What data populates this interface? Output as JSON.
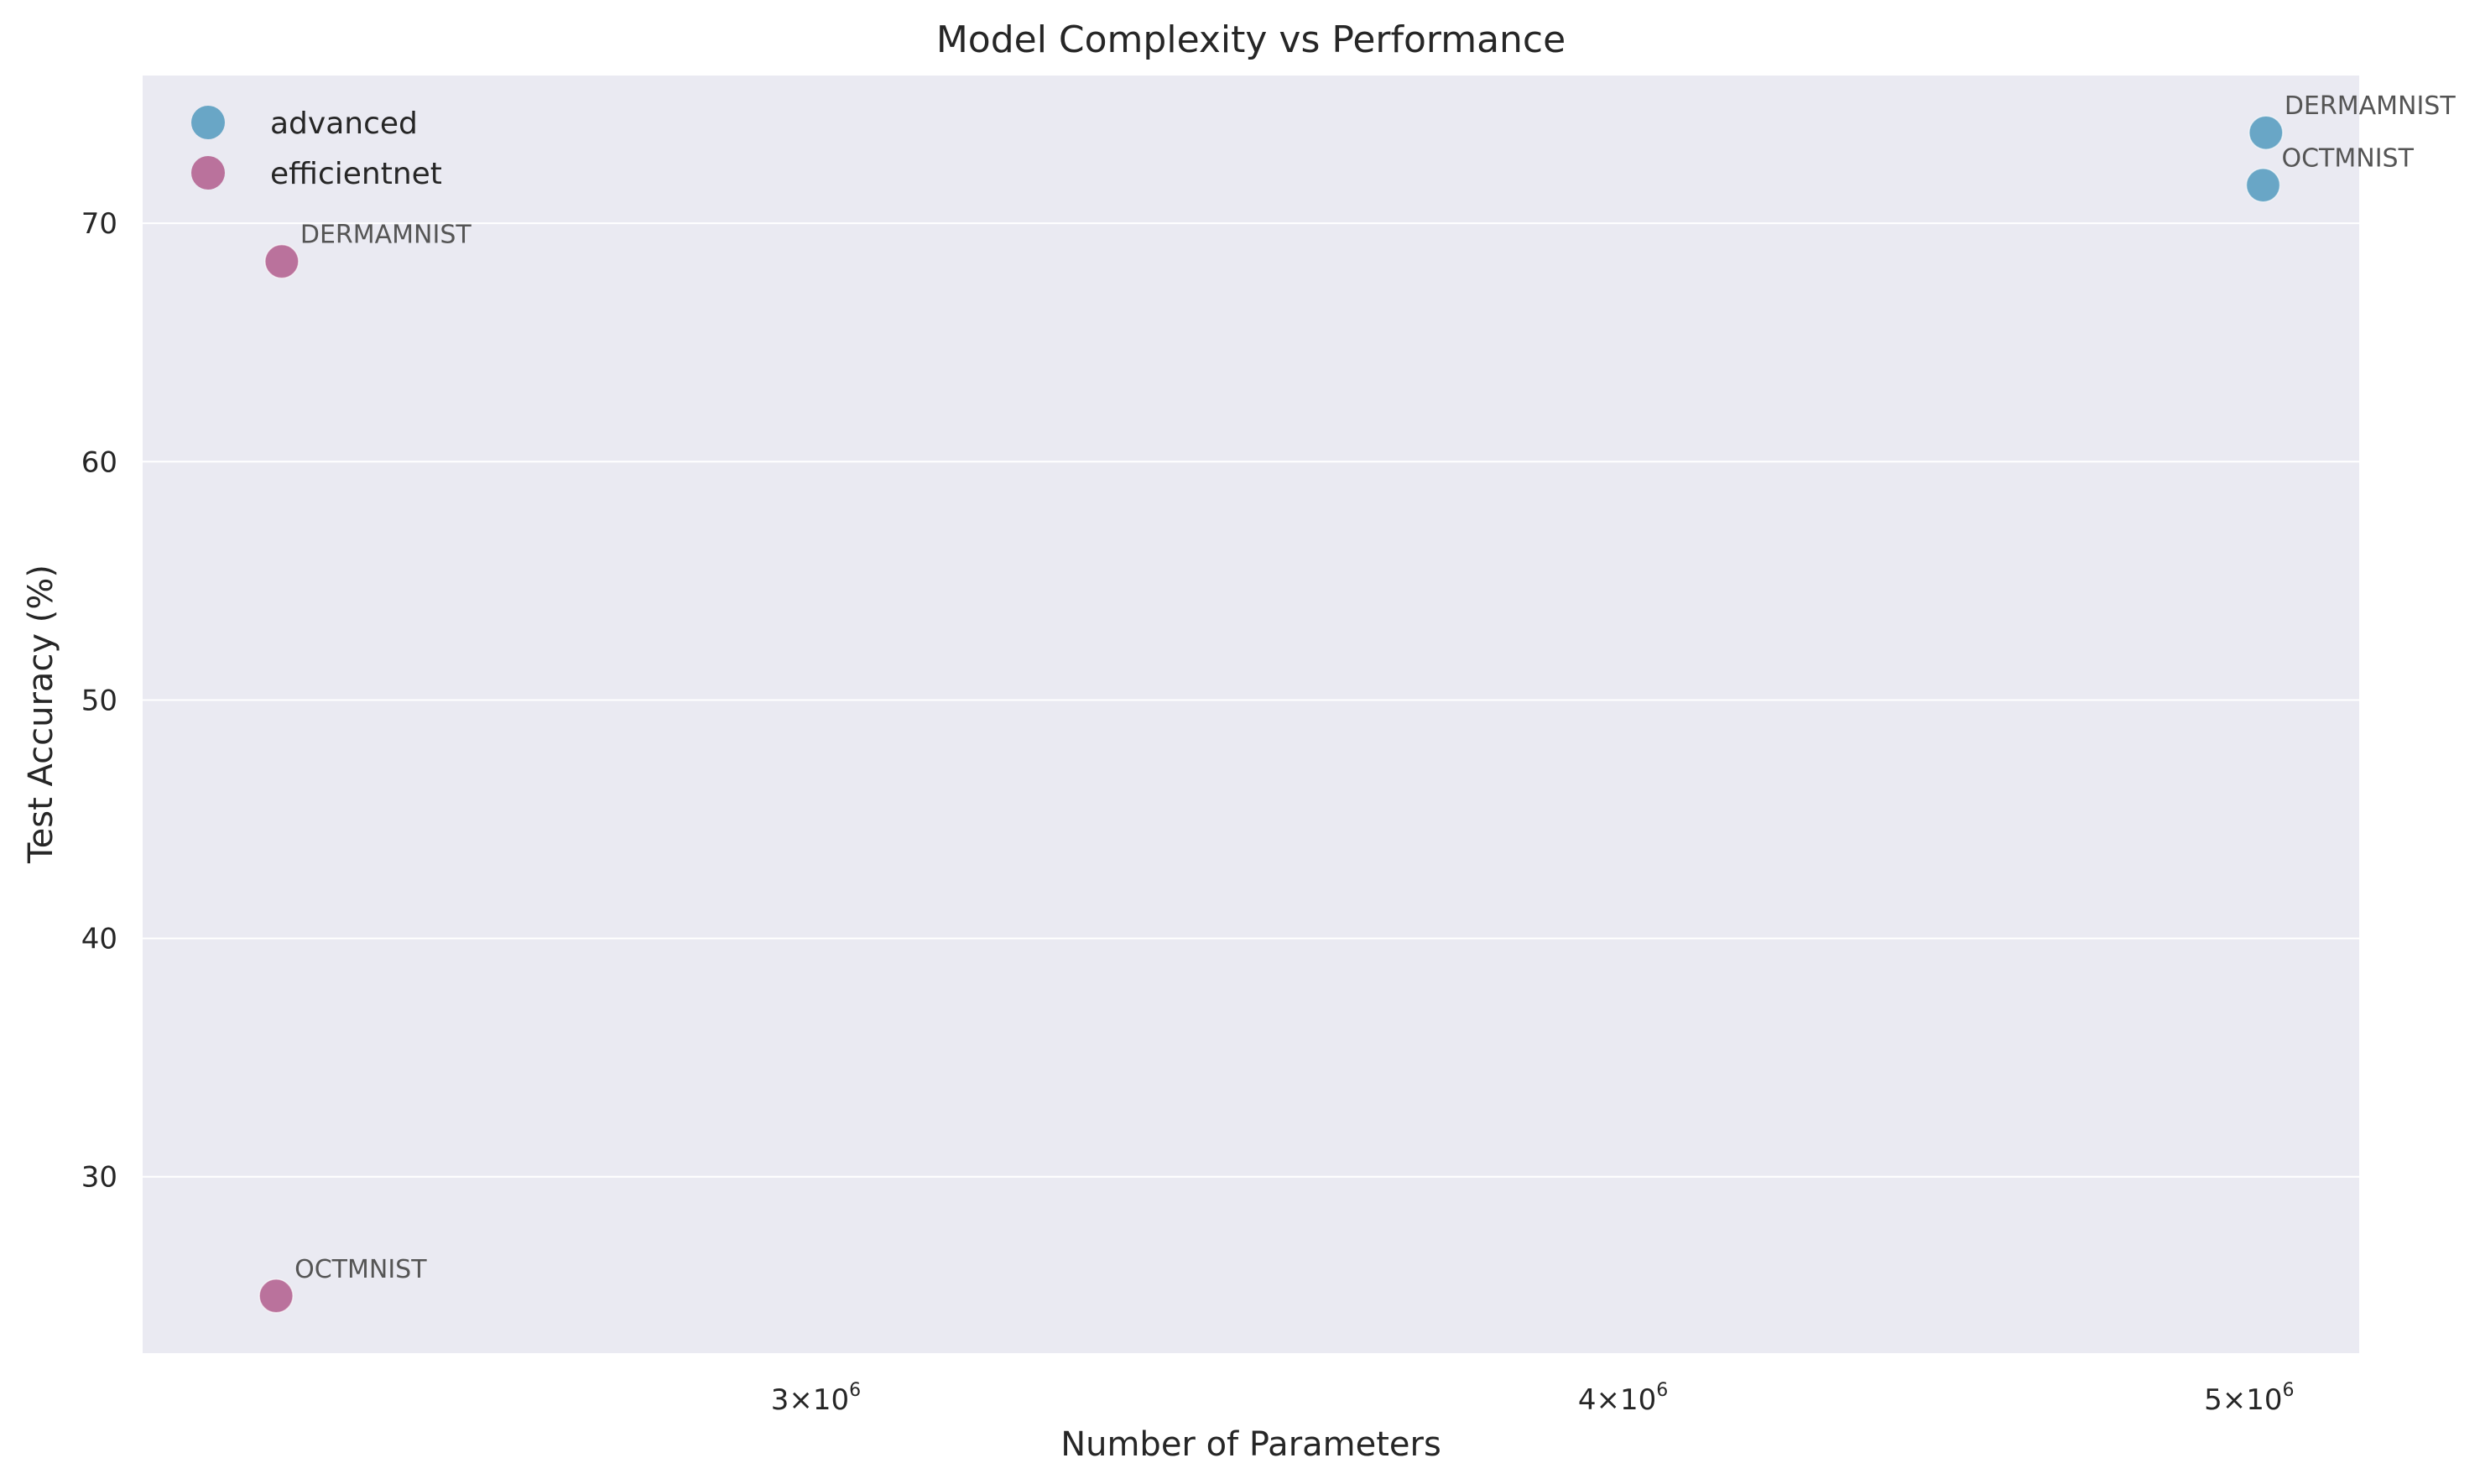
{
  "chart_data": {
    "type": "scatter",
    "title": "Model Complexity vs Performance",
    "xlabel": "Number of Parameters",
    "ylabel": "Test Accuracy (%)",
    "x_scale": "log",
    "xlim": [
      2360000,
      5200000
    ],
    "ylim": [
      22.6,
      76.2
    ],
    "x_ticks": [
      {
        "value": 3000000,
        "base": "3×10",
        "exp": "6"
      },
      {
        "value": 4000000,
        "base": "4×10",
        "exp": "6"
      },
      {
        "value": 5000000,
        "base": "5×10",
        "exp": "6"
      }
    ],
    "y_ticks": [
      30,
      40,
      50,
      60,
      70
    ],
    "grid": true,
    "legend_position": "top-left",
    "series": [
      {
        "name": "advanced",
        "color": "#5b9fc1",
        "points": [
          {
            "x": 5030000,
            "y": 73.8,
            "label": "DERMAMNIST"
          },
          {
            "x": 5025000,
            "y": 71.6,
            "label": "OCTMNIST"
          }
        ]
      },
      {
        "name": "efficientnet",
        "color": "#b56592",
        "points": [
          {
            "x": 2480000,
            "y": 68.4,
            "label": "DERMAMNIST"
          },
          {
            "x": 2475000,
            "y": 25.0,
            "label": "OCTMNIST"
          }
        ]
      }
    ]
  }
}
